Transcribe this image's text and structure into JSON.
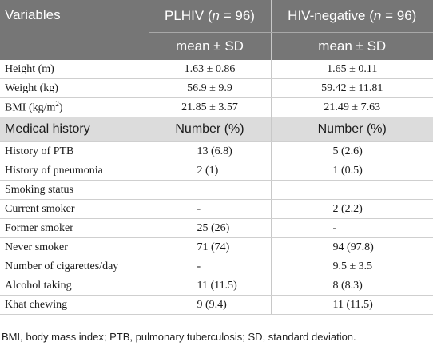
{
  "header": {
    "variables": "Variables",
    "group1": "PLHIV",
    "group2": "HIV-negative",
    "n_label": "n",
    "n_value": " = 96)",
    "open": " (",
    "stat": "mean ± SD"
  },
  "measures": [
    {
      "label": "Height (m)",
      "plhiv": "1.63 ± 0.86",
      "neg": "1.65 ± 0.11"
    },
    {
      "label": "Weight (kg)",
      "plhiv": "56.9 ± 9.9",
      "neg": "59.42 ± 11.81"
    },
    {
      "label_pre": "BMI (kg/m",
      "label_sup": "2",
      "label_post": ")",
      "plhiv": "21.85 ± 3.57",
      "neg": "21.49 ± 7.63"
    }
  ],
  "section": {
    "label": "Medical history",
    "col1": "Number (%)",
    "col2": "Number (%)"
  },
  "history": [
    {
      "label": "History of PTB",
      "plhiv": "13 (6.8)",
      "neg": "5 (2.6)"
    },
    {
      "label": "History of pneumonia",
      "plhiv": "2 (1)",
      "neg": "1 (0.5)"
    },
    {
      "label": "Smoking status",
      "plhiv": "",
      "neg": ""
    },
    {
      "label": "Current smoker",
      "plhiv": "-",
      "neg": "2 (2.2)"
    },
    {
      "label": "Former smoker",
      "plhiv": "25 (26)",
      "neg": "-"
    },
    {
      "label": "Never smoker",
      "plhiv": "71 (74)",
      "neg": "94 (97.8)"
    },
    {
      "label": "Number of cigarettes/day",
      "plhiv": "-",
      "neg": "9.5 ± 3.5"
    },
    {
      "label": "Alcohol taking",
      "plhiv": "11 (11.5)",
      "neg": "8 (8.3)"
    },
    {
      "label": "Khat chewing",
      "plhiv": "9 (9.4)",
      "neg": "11 (11.5)"
    }
  ],
  "footnote": "BMI, body mass index; PTB, pulmonary tuberculosis; SD, standard deviation."
}
